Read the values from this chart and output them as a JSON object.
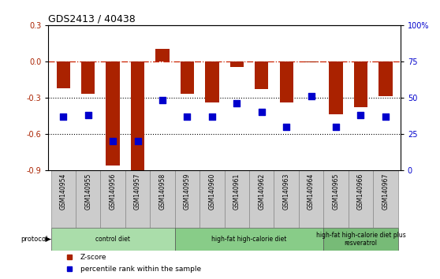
{
  "title": "GDS2413 / 40438",
  "samples": [
    "GSM140954",
    "GSM140955",
    "GSM140956",
    "GSM140957",
    "GSM140958",
    "GSM140959",
    "GSM140960",
    "GSM140961",
    "GSM140962",
    "GSM140963",
    "GSM140964",
    "GSM140965",
    "GSM140966",
    "GSM140967"
  ],
  "z_scores": [
    -0.22,
    -0.27,
    -0.86,
    -0.95,
    0.1,
    -0.27,
    -0.34,
    -0.05,
    -0.23,
    -0.34,
    -0.01,
    -0.44,
    -0.38,
    -0.29
  ],
  "pct_ranks": [
    37,
    38,
    20,
    20,
    48,
    37,
    37,
    46,
    40,
    30,
    51,
    30,
    38,
    37
  ],
  "bar_color": "#aa2200",
  "dot_color": "#0000cc",
  "ref_line_color": "#cc2200",
  "groups": [
    {
      "label": "control diet",
      "start": 0,
      "end": 5,
      "color": "#aaddaa"
    },
    {
      "label": "high-fat high-calorie diet",
      "start": 5,
      "end": 11,
      "color": "#88cc88"
    },
    {
      "label": "high-fat high-calorie diet plus\nresveratrol",
      "start": 11,
      "end": 14,
      "color": "#77bb77"
    }
  ],
  "ylim_left": [
    -0.9,
    0.3
  ],
  "ylim_right": [
    0,
    100
  ],
  "yticks_left": [
    -0.9,
    -0.6,
    -0.3,
    0.0,
    0.3
  ],
  "yticks_right": [
    0,
    25,
    50,
    75,
    100
  ],
  "ytick_labels_right": [
    "0",
    "25",
    "50",
    "75",
    "100%"
  ],
  "grid_lines": [
    -0.3,
    -0.6
  ],
  "dot_size": 35,
  "sample_box_color": "#cccccc",
  "sample_box_edge": "#888888",
  "group_edge": "#555555"
}
